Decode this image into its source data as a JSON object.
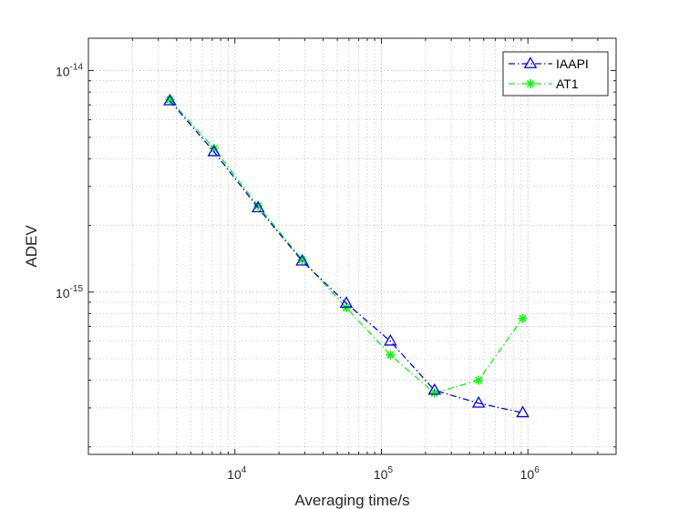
{
  "chart_data": {
    "type": "line",
    "xlabel": "Averaging time/s",
    "ylabel": "ADEV",
    "xscale": "log",
    "yscale": "log",
    "xlim": [
      1000,
      4000000
    ],
    "ylim": [
      1.85e-16,
      1.4e-14
    ],
    "grid": true,
    "minor_grid": true,
    "legend_position": "top-right",
    "x_ticks": [
      {
        "base": "10",
        "exp": "4",
        "value": 10000
      },
      {
        "base": "10",
        "exp": "5",
        "value": 100000
      },
      {
        "base": "10",
        "exp": "6",
        "value": 1000000
      }
    ],
    "y_ticks": [
      {
        "base": "10",
        "exp": "-15",
        "value": 1e-15
      },
      {
        "base": "10",
        "exp": "-14",
        "value": 1e-14
      }
    ],
    "series": [
      {
        "name": "IAAPI",
        "color": "#0000ff",
        "marker": "triangle",
        "linestyle": "dashdot",
        "x": [
          3600,
          7200,
          14400,
          28800,
          57600,
          115200,
          230400,
          460800,
          921600
        ],
        "y": [
          7.3e-15,
          4.3e-15,
          2.4e-15,
          1.38e-15,
          8.9e-16,
          6e-16,
          3.6e-16,
          3.15e-16,
          2.85e-16
        ]
      },
      {
        "name": "AT1",
        "color": "#00ff00",
        "marker": "asterisk",
        "linestyle": "dashdot",
        "x": [
          3600,
          7200,
          14400,
          28800,
          57600,
          115200,
          230400,
          460800,
          921600
        ],
        "y": [
          7.4e-15,
          4.45e-15,
          2.45e-15,
          1.4e-15,
          8.5e-16,
          5.2e-16,
          3.5e-16,
          4e-16,
          7.6e-16
        ]
      }
    ]
  }
}
